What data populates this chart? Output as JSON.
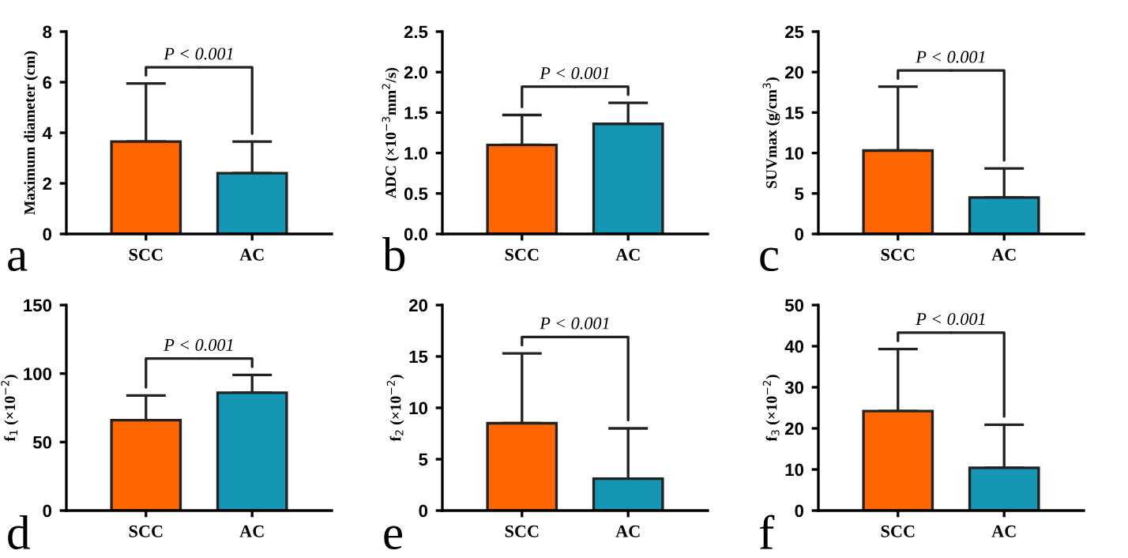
{
  "chart_data": [
    {
      "type": "bar",
      "categories": [
        "SCC",
        "AC"
      ],
      "values": [
        3.65,
        2.4
      ],
      "colors": [
        "#ff6600",
        "#1496b4"
      ],
      "errors": [
        [
          3.65,
          5.95
        ],
        [
          2.4,
          3.65
        ]
      ],
      "ylabel": "Maximum diameter (cm)",
      "ylim": [
        0,
        8
      ],
      "yticks": [
        0,
        2,
        4,
        6,
        8
      ],
      "grid": false,
      "legend": false,
      "annotations": [
        "P < 0.001",
        "a"
      ]
    },
    {
      "type": "bar",
      "categories": [
        "SCC",
        "AC"
      ],
      "values": [
        1.1,
        1.36
      ],
      "colors": [
        "#ff6600",
        "#1496b4"
      ],
      "errors": [
        [
          1.1,
          1.47
        ],
        [
          1.36,
          1.62
        ]
      ],
      "ylabel": "ADC (×10$^{−3}$mm$^{2}$/s)",
      "ylim": [
        0,
        2.5
      ],
      "yticks": [
        {
          "value": 0,
          "label": "0.0"
        },
        {
          "value": 0.5,
          "label": "0.5"
        },
        {
          "value": 1,
          "label": "1.0"
        },
        {
          "value": 1.5,
          "label": "1.5"
        },
        {
          "value": 2,
          "label": "2.0"
        },
        {
          "value": 2.5,
          "label": "2.5"
        }
      ],
      "grid": false,
      "legend": false,
      "annotations": [
        "P < 0.001",
        "b"
      ]
    },
    {
      "type": "bar",
      "categories": [
        "SCC",
        "AC"
      ],
      "values": [
        10.3,
        4.5
      ],
      "colors": [
        "#ff6600",
        "#1496b4"
      ],
      "errors": [
        [
          10.3,
          18.2
        ],
        [
          4.5,
          8.1
        ]
      ],
      "ylabel": "SUVmax (g/cm$^{3}$)",
      "ylim": [
        0,
        25
      ],
      "yticks": [
        0,
        5,
        10,
        15,
        20,
        25
      ],
      "grid": false,
      "legend": false,
      "annotations": [
        "P < 0.001",
        "c"
      ]
    },
    {
      "type": "bar",
      "categories": [
        "SCC",
        "AC"
      ],
      "values": [
        66,
        86
      ],
      "colors": [
        "#ff6600",
        "#1496b4"
      ],
      "errors": [
        [
          66,
          84
        ],
        [
          86,
          99
        ]
      ],
      "ylabel": "f$_{1}$ (×10$^{−2}$)",
      "ylim": [
        0,
        150
      ],
      "yticks": [
        0,
        50,
        100,
        150
      ],
      "grid": false,
      "legend": false,
      "annotations": [
        "P < 0.001",
        "d"
      ]
    },
    {
      "type": "bar",
      "categories": [
        "SCC",
        "AC"
      ],
      "values": [
        8.5,
        3.1
      ],
      "colors": [
        "#ff6600",
        "#1496b4"
      ],
      "errors": [
        [
          8.5,
          15.3
        ],
        [
          3.1,
          8.0
        ]
      ],
      "ylabel": "f$_{2}$ (×10$^{−2}$)",
      "ylim": [
        0,
        20
      ],
      "yticks": [
        0,
        5,
        10,
        15,
        20
      ],
      "grid": false,
      "legend": false,
      "annotations": [
        "P < 0.001",
        "e"
      ]
    },
    {
      "type": "bar",
      "categories": [
        "SCC",
        "AC"
      ],
      "values": [
        24.2,
        10.4
      ],
      "colors": [
        "#ff6600",
        "#1496b4"
      ],
      "errors": [
        [
          24.2,
          39.3
        ],
        [
          10.4,
          20.9
        ]
      ],
      "ylabel": "f$_{3}$ (×10$^{−2}$)",
      "ylim": [
        0,
        50
      ],
      "yticks": [
        0,
        10,
        20,
        30,
        40,
        50
      ],
      "grid": false,
      "legend": false,
      "annotations": [
        "P < 0.001",
        "f"
      ]
    }
  ]
}
